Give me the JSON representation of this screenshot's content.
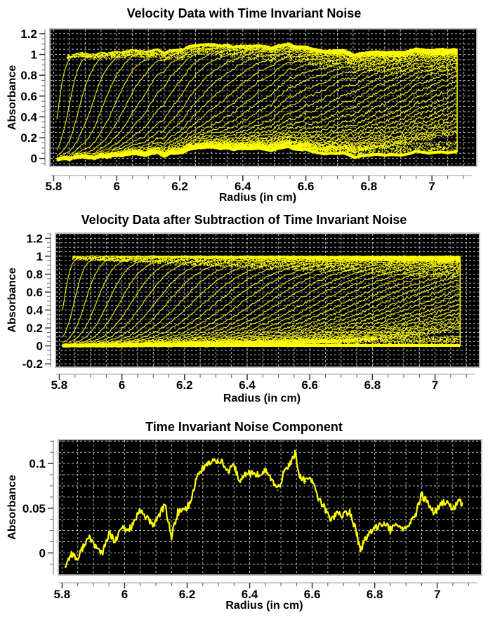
{
  "chart_data": [
    {
      "type": "line",
      "title": "Velocity Data with Time Invariant Noise",
      "xlabel": "Radius (in cm)",
      "ylabel": "Absorbance",
      "xlim": [
        5.79,
        7.14
      ],
      "ylim": [
        -0.07,
        1.24
      ],
      "x_ticks": [
        5.8,
        6,
        6.2,
        6.4,
        6.6,
        6.8,
        7
      ],
      "x_tick_labels": [
        "5.8",
        "6",
        "6.2",
        "6.4",
        "6.6",
        "6.8",
        "7"
      ],
      "y_ticks": [
        0,
        0.2,
        0.4,
        0.6,
        0.8,
        1,
        1.2
      ],
      "y_tick_labels": [
        "0",
        "0.2",
        "0.4",
        "0.6",
        "0.8",
        "1",
        "1.2"
      ],
      "grid": true,
      "background": "#000000",
      "series_color": "#ffff00",
      "data_range_x": [
        5.81,
        7.08
      ],
      "scan_count": 40,
      "plateau": 1.0,
      "includes_noise": true,
      "description_values": {
        "baseline_start": -0.02,
        "baseline_peak": 0.09,
        "plateau_max": 1.09
      }
    },
    {
      "type": "line",
      "title": "Velocity Data after Subtraction of Time Invariant Noise",
      "xlabel": "Radius (in cm)",
      "ylabel": "Absorbance",
      "xlim": [
        5.79,
        7.14
      ],
      "ylim": [
        -0.23,
        1.25
      ],
      "x_ticks": [
        5.8,
        6,
        6.2,
        6.4,
        6.6,
        6.8,
        7
      ],
      "x_tick_labels": [
        "5.8",
        "6",
        "6.2",
        "6.4",
        "6.6",
        "6.8",
        "7"
      ],
      "y_ticks": [
        -0.2,
        0,
        0.2,
        0.4,
        0.6,
        0.8,
        1,
        1.2
      ],
      "y_tick_labels": [
        "-0.2",
        "0",
        "0.2",
        "0.4",
        "0.6",
        "0.8",
        "1",
        "1.2"
      ],
      "grid": true,
      "background": "#000000",
      "series_color": "#ffff00",
      "data_range_x": [
        5.81,
        7.08
      ],
      "scan_count": 40,
      "plateau": 1.0,
      "includes_noise": false
    },
    {
      "type": "line",
      "title": "Time Invariant Noise Component",
      "xlabel": "Radius (in cm)",
      "ylabel": "Absorbance",
      "xlim": [
        5.79,
        7.14
      ],
      "ylim": [
        -0.024,
        0.126
      ],
      "x_ticks": [
        5.8,
        6,
        6.2,
        6.4,
        6.6,
        6.8,
        7
      ],
      "x_tick_labels": [
        "5.8",
        "6",
        "6.2",
        "6.4",
        "6.6",
        "6.8",
        "7"
      ],
      "y_ticks": [
        0,
        0.05,
        0.1
      ],
      "y_tick_labels": [
        "0",
        "0.05",
        "0.1"
      ],
      "grid": true,
      "background": "#000000",
      "series_color": "#ffff00",
      "series": [
        {
          "name": "Time Invariant Noise",
          "x": [
            5.81,
            5.83,
            5.85,
            5.87,
            5.89,
            5.91,
            5.93,
            5.95,
            5.97,
            5.99,
            6.01,
            6.03,
            6.05,
            6.07,
            6.09,
            6.11,
            6.13,
            6.15,
            6.17,
            6.19,
            6.21,
            6.23,
            6.25,
            6.27,
            6.29,
            6.31,
            6.33,
            6.35,
            6.37,
            6.39,
            6.41,
            6.43,
            6.45,
            6.47,
            6.49,
            6.51,
            6.53,
            6.545,
            6.56,
            6.58,
            6.6,
            6.62,
            6.64,
            6.66,
            6.68,
            6.7,
            6.72,
            6.74,
            6.755,
            6.77,
            6.79,
            6.81,
            6.83,
            6.85,
            6.87,
            6.89,
            6.91,
            6.93,
            6.95,
            6.97,
            6.99,
            7.01,
            7.03,
            7.05,
            7.07,
            7.08
          ],
          "y": [
            -0.015,
            0.0,
            -0.008,
            0.01,
            0.017,
            0.005,
            0.0,
            0.022,
            0.012,
            0.028,
            0.025,
            0.034,
            0.047,
            0.04,
            0.03,
            0.043,
            0.053,
            0.018,
            0.045,
            0.048,
            0.055,
            0.085,
            0.095,
            0.1,
            0.104,
            0.103,
            0.09,
            0.097,
            0.079,
            0.09,
            0.088,
            0.087,
            0.093,
            0.082,
            0.07,
            0.09,
            0.1,
            0.112,
            0.085,
            0.08,
            0.083,
            0.06,
            0.05,
            0.037,
            0.045,
            0.042,
            0.046,
            0.025,
            0.002,
            0.017,
            0.023,
            0.03,
            0.035,
            0.025,
            0.031,
            0.028,
            0.03,
            0.042,
            0.065,
            0.055,
            0.045,
            0.053,
            0.058,
            0.048,
            0.058,
            0.056
          ]
        }
      ]
    }
  ]
}
